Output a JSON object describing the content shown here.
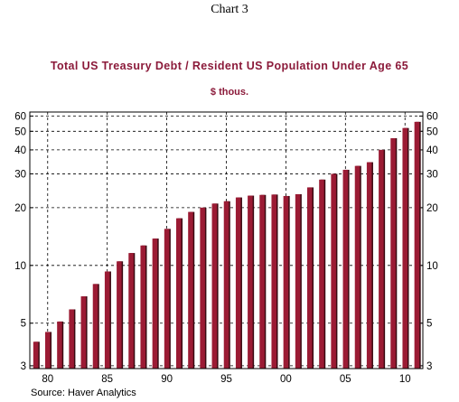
{
  "header": {
    "chart_number": "Chart 3"
  },
  "footer": {
    "source": "Source: Haver Analytics"
  },
  "colors": {
    "bar_fill": "#9b1b34",
    "bar_shadow": "#3a0a12",
    "title": "#8b1a3a"
  },
  "chart_data": {
    "type": "bar",
    "title": "Total US Treasury Debt / Resident US Population Under Age 65",
    "subtitle": "$ thous.",
    "xlabel": "",
    "ylabel": "",
    "y_scale": "log",
    "ylim": [
      2.9,
      63
    ],
    "y_ticks": [
      3,
      5,
      10,
      20,
      30,
      40,
      50,
      60
    ],
    "x_tick_labels": [
      "80",
      "85",
      "90",
      "95",
      "00",
      "05",
      "10"
    ],
    "grid": true,
    "categories": [
      1979,
      1980,
      1981,
      1982,
      1983,
      1984,
      1985,
      1986,
      1987,
      1988,
      1989,
      1990,
      1991,
      1992,
      1993,
      1994,
      1995,
      1996,
      1997,
      1998,
      1999,
      2000,
      2001,
      2002,
      2003,
      2004,
      2005,
      2006,
      2007,
      2008,
      2009,
      2010,
      2011
    ],
    "values": [
      4.0,
      4.5,
      5.1,
      5.9,
      6.9,
      8.0,
      9.3,
      10.5,
      11.6,
      12.7,
      13.8,
      15.5,
      17.6,
      19.0,
      20.0,
      21.0,
      21.6,
      22.6,
      23.1,
      23.3,
      23.4,
      23.0,
      23.5,
      25.5,
      28.0,
      30.0,
      31.5,
      33.0,
      34.5,
      40.0,
      46.0,
      52.0,
      56.0
    ]
  }
}
